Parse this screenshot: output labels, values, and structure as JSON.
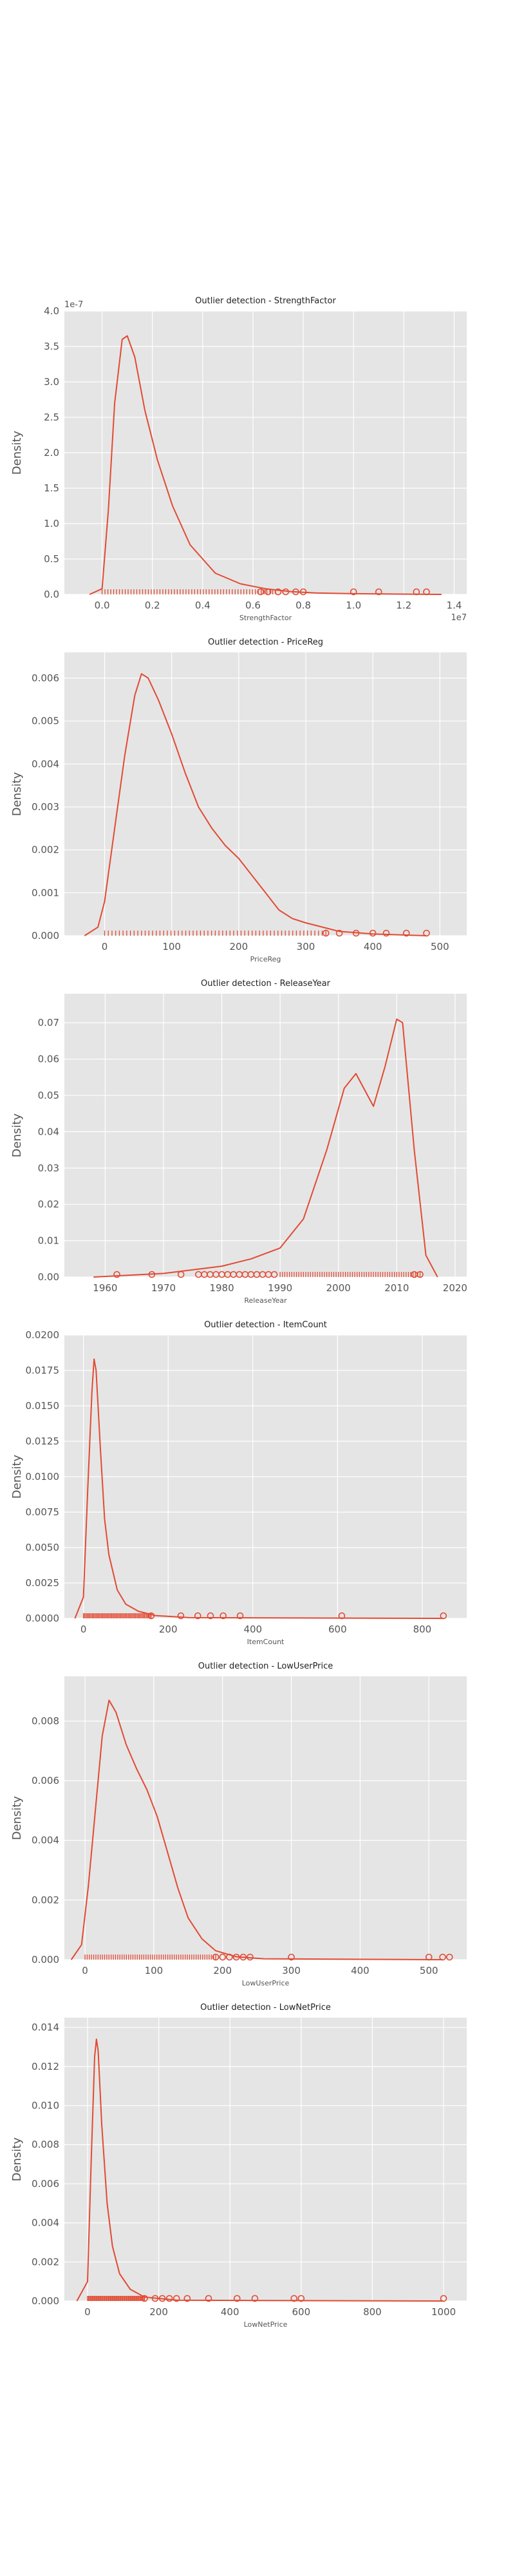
{
  "colors": {
    "panel": "#e5e5e5",
    "grid": "#ffffff",
    "series": "#e24a33",
    "text": "#555555"
  },
  "chart_data": [
    {
      "type": "area",
      "title": "Outlier detection - StrengthFactor",
      "xlabel": "StrengthFactor",
      "ylabel": "Density",
      "xlim": [
        -1500000,
        14500000
      ],
      "ylim": [
        0,
        4e-07
      ],
      "xticks": [
        0,
        2000000,
        4000000,
        6000000,
        8000000,
        10000000,
        12000000,
        14000000
      ],
      "xtick_labels": [
        "0.0",
        "0.2",
        "0.4",
        "0.6",
        "0.8",
        "1.0",
        "1.2",
        "1.4"
      ],
      "x_offset_label": "1e7",
      "yticks": [
        0,
        5e-08,
        1e-07,
        1.5e-07,
        2e-07,
        2.5e-07,
        3e-07,
        3.5e-07,
        4e-07
      ],
      "ytick_labels": [
        "0.0",
        "0.5",
        "1.0",
        "1.5",
        "2.0",
        "2.5",
        "3.0",
        "3.5",
        "4.0"
      ],
      "y_offset_label": "1e-7",
      "density": [
        [
          -500000,
          0
        ],
        [
          0,
          8e-09
        ],
        [
          250000,
          1.2e-07
        ],
        [
          500000,
          2.7e-07
        ],
        [
          800000,
          3.6e-07
        ],
        [
          1000000,
          3.65e-07
        ],
        [
          1300000,
          3.35e-07
        ],
        [
          1700000,
          2.6e-07
        ],
        [
          2200000,
          1.9e-07
        ],
        [
          2800000,
          1.25e-07
        ],
        [
          3500000,
          7e-08
        ],
        [
          4500000,
          3e-08
        ],
        [
          5500000,
          1.5e-08
        ],
        [
          6500000,
          8e-09
        ],
        [
          7500000,
          4e-09
        ],
        [
          8500000,
          2e-09
        ],
        [
          10000000,
          1e-09
        ],
        [
          13500000,
          0
        ]
      ],
      "rug_range": [
        0,
        6900000
      ],
      "outliers": [
        6300000,
        6600000,
        7000000,
        7300000,
        7700000,
        8000000,
        10000000,
        11000000,
        12500000,
        12900000
      ]
    },
    {
      "type": "area",
      "title": "Outlier detection - PriceReg",
      "xlabel": "PriceReg",
      "ylabel": "Density",
      "xlim": [
        -60,
        540
      ],
      "ylim": [
        0,
        0.0066
      ],
      "xticks": [
        0,
        100,
        200,
        300,
        400,
        500
      ],
      "xtick_labels": [
        "0",
        "100",
        "200",
        "300",
        "400",
        "500"
      ],
      "yticks": [
        0,
        0.001,
        0.002,
        0.003,
        0.004,
        0.005,
        0.006
      ],
      "ytick_labels": [
        "0.000",
        "0.001",
        "0.002",
        "0.003",
        "0.004",
        "0.005",
        "0.006"
      ],
      "density": [
        [
          -30,
          0
        ],
        [
          -10,
          0.0002
        ],
        [
          0,
          0.0008
        ],
        [
          15,
          0.0025
        ],
        [
          30,
          0.0042
        ],
        [
          45,
          0.0056
        ],
        [
          55,
          0.0061
        ],
        [
          65,
          0.006
        ],
        [
          80,
          0.0055
        ],
        [
          100,
          0.0047
        ],
        [
          120,
          0.0038
        ],
        [
          140,
          0.003
        ],
        [
          160,
          0.0025
        ],
        [
          180,
          0.0021
        ],
        [
          200,
          0.0018
        ],
        [
          220,
          0.0014
        ],
        [
          240,
          0.001
        ],
        [
          260,
          0.0006
        ],
        [
          280,
          0.0004
        ],
        [
          300,
          0.0003
        ],
        [
          350,
          0.0001
        ],
        [
          400,
          4e-05
        ],
        [
          480,
          0
        ]
      ],
      "rug_range": [
        0,
        330
      ],
      "outliers": [
        330,
        350,
        375,
        400,
        420,
        450,
        480
      ]
    },
    {
      "type": "area",
      "title": "Outlier detection - ReleaseYear",
      "xlabel": "ReleaseYear",
      "ylabel": "Density",
      "xlim": [
        1953,
        2022
      ],
      "ylim": [
        0,
        0.078
      ],
      "xticks": [
        1960,
        1970,
        1980,
        1990,
        2000,
        2010,
        2020
      ],
      "xtick_labels": [
        "1960",
        "1970",
        "1980",
        "1990",
        "2000",
        "2010",
        "2020"
      ],
      "yticks": [
        0,
        0.01,
        0.02,
        0.03,
        0.04,
        0.05,
        0.06,
        0.07
      ],
      "ytick_labels": [
        "0.00",
        "0.01",
        "0.02",
        "0.03",
        "0.04",
        "0.05",
        "0.06",
        "0.07"
      ],
      "density": [
        [
          1958,
          0
        ],
        [
          1970,
          0.001
        ],
        [
          1975,
          0.002
        ],
        [
          1980,
          0.003
        ],
        [
          1985,
          0.005
        ],
        [
          1990,
          0.008
        ],
        [
          1994,
          0.016
        ],
        [
          1998,
          0.035
        ],
        [
          2001,
          0.052
        ],
        [
          2003,
          0.056
        ],
        [
          2005,
          0.05
        ],
        [
          2006,
          0.047
        ],
        [
          2008,
          0.058
        ],
        [
          2010,
          0.071
        ],
        [
          2011,
          0.07
        ],
        [
          2013,
          0.035
        ],
        [
          2015,
          0.006
        ],
        [
          2017,
          0
        ]
      ],
      "rug_range": [
        1990,
        2014
      ],
      "outliers": [
        1962,
        1968,
        1973,
        1976,
        1977,
        1978,
        1979,
        1980,
        1981,
        1982,
        1983,
        1984,
        1985,
        1986,
        1987,
        1988,
        1989,
        2013,
        2014
      ]
    },
    {
      "type": "area",
      "title": "Outlier detection - ItemCount",
      "xlabel": "ItemCount",
      "ylabel": "Density",
      "xlim": [
        -45,
        905
      ],
      "ylim": [
        0,
        0.02
      ],
      "xticks": [
        0,
        200,
        400,
        600,
        800
      ],
      "xtick_labels": [
        "0",
        "200",
        "400",
        "600",
        "800"
      ],
      "yticks": [
        0,
        0.0025,
        0.005,
        0.0075,
        0.01,
        0.0125,
        0.015,
        0.0175,
        0.02
      ],
      "ytick_labels": [
        "0.0000",
        "0.0025",
        "0.0050",
        "0.0075",
        "0.0100",
        "0.0125",
        "0.0150",
        "0.0175",
        "0.0200"
      ],
      "density": [
        [
          -20,
          0
        ],
        [
          0,
          0.0015
        ],
        [
          10,
          0.009
        ],
        [
          20,
          0.016
        ],
        [
          25,
          0.0183
        ],
        [
          30,
          0.0175
        ],
        [
          40,
          0.012
        ],
        [
          50,
          0.007
        ],
        [
          60,
          0.0045
        ],
        [
          80,
          0.002
        ],
        [
          100,
          0.001
        ],
        [
          130,
          0.0005
        ],
        [
          170,
          0.0002
        ],
        [
          250,
          5e-05
        ],
        [
          850,
          0
        ]
      ],
      "rug_range": [
        0,
        160
      ],
      "outliers": [
        160,
        230,
        270,
        300,
        330,
        370,
        610,
        850
      ]
    },
    {
      "type": "area",
      "title": "Outlier detection - LowUserPrice",
      "xlabel": "LowUserPrice",
      "ylabel": "Density",
      "xlim": [
        -30,
        555
      ],
      "ylim": [
        0,
        0.0095
      ],
      "xticks": [
        0,
        100,
        200,
        300,
        400,
        500
      ],
      "xtick_labels": [
        "0",
        "100",
        "200",
        "300",
        "400",
        "500"
      ],
      "yticks": [
        0,
        0.002,
        0.004,
        0.006,
        0.008
      ],
      "ytick_labels": [
        "0.000",
        "0.002",
        "0.004",
        "0.006",
        "0.008"
      ],
      "density": [
        [
          -20,
          0
        ],
        [
          -5,
          0.0005
        ],
        [
          5,
          0.0025
        ],
        [
          15,
          0.005
        ],
        [
          25,
          0.0075
        ],
        [
          35,
          0.0087
        ],
        [
          45,
          0.0083
        ],
        [
          60,
          0.0072
        ],
        [
          75,
          0.0064
        ],
        [
          90,
          0.0057
        ],
        [
          105,
          0.0048
        ],
        [
          120,
          0.0036
        ],
        [
          135,
          0.0024
        ],
        [
          150,
          0.0014
        ],
        [
          170,
          0.0007
        ],
        [
          190,
          0.0003
        ],
        [
          220,
          0.0001
        ],
        [
          260,
          3e-05
        ],
        [
          520,
          0
        ]
      ],
      "rug_range": [
        0,
        190
      ],
      "outliers": [
        190,
        200,
        210,
        220,
        230,
        240,
        300,
        500,
        520,
        530
      ]
    },
    {
      "type": "area",
      "title": "Outlier detection - LowNetPrice",
      "xlabel": "LowNetPrice",
      "ylabel": "Density",
      "xlim": [
        -65,
        1065
      ],
      "ylim": [
        0,
        0.0145
      ],
      "xticks": [
        0,
        200,
        400,
        600,
        800,
        1000
      ],
      "xtick_labels": [
        "0",
        "200",
        "400",
        "600",
        "800",
        "1000"
      ],
      "yticks": [
        0,
        0.002,
        0.004,
        0.006,
        0.008,
        0.01,
        0.012,
        0.014
      ],
      "ytick_labels": [
        "0.000",
        "0.002",
        "0.004",
        "0.006",
        "0.008",
        "0.010",
        "0.012",
        "0.014"
      ],
      "density": [
        [
          -30,
          0
        ],
        [
          0,
          0.001
        ],
        [
          10,
          0.007
        ],
        [
          20,
          0.0125
        ],
        [
          25,
          0.0134
        ],
        [
          30,
          0.0128
        ],
        [
          40,
          0.009
        ],
        [
          55,
          0.005
        ],
        [
          70,
          0.0028
        ],
        [
          90,
          0.0014
        ],
        [
          120,
          0.0006
        ],
        [
          160,
          0.0002
        ],
        [
          250,
          4e-05
        ],
        [
          1000,
          0
        ]
      ],
      "rug_range": [
        0,
        160
      ],
      "outliers": [
        160,
        190,
        210,
        230,
        250,
        280,
        340,
        420,
        470,
        580,
        600,
        1000
      ]
    }
  ]
}
